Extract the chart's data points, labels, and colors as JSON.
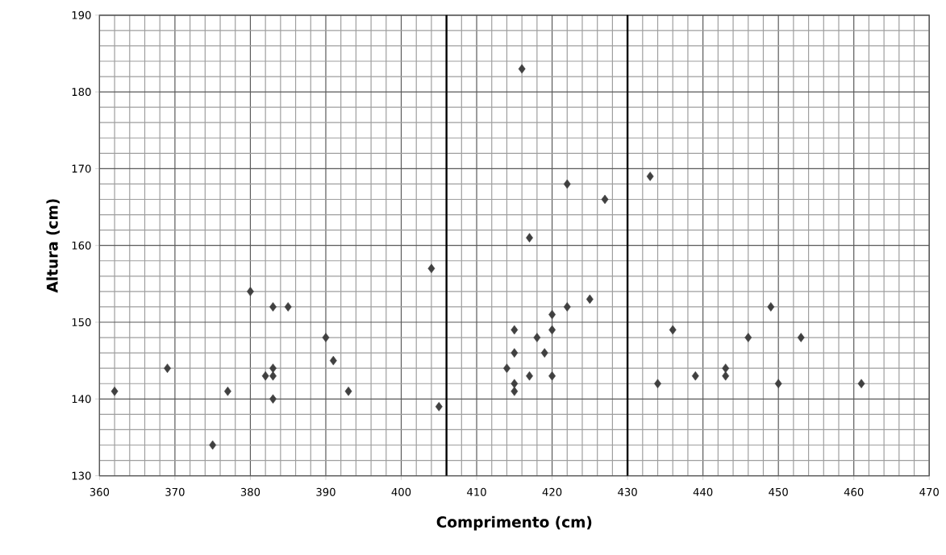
{
  "chart_data": {
    "type": "scatter",
    "xlabel": "Comprimento (cm)",
    "ylabel": "Altura (cm)",
    "xlim": [
      360,
      470
    ],
    "ylim": [
      130,
      190
    ],
    "xticks": [
      360,
      370,
      380,
      390,
      400,
      410,
      420,
      430,
      440,
      450,
      460,
      470
    ],
    "yticks": [
      130,
      140,
      150,
      160,
      170,
      180,
      190
    ],
    "grid": true,
    "marker": "diamond",
    "ref_lines": [
      {
        "axis": "x",
        "value": 406,
        "color": "#000000"
      },
      {
        "axis": "x",
        "value": 430,
        "color": "#000000"
      }
    ],
    "series": [
      {
        "color": "#404040",
        "x": [
          362,
          369,
          375,
          377,
          380,
          383,
          385,
          382,
          383,
          383,
          383,
          390,
          391,
          393,
          404,
          405,
          414,
          415,
          415,
          415,
          415,
          416,
          417,
          417,
          418,
          419,
          420,
          420,
          420,
          422,
          422,
          425,
          427,
          433,
          434,
          436,
          439,
          443,
          443,
          446,
          449,
          450,
          453,
          461
        ],
        "values": [
          141,
          144,
          134,
          141,
          154,
          152,
          152,
          143,
          144,
          143,
          140,
          148,
          145,
          141,
          157,
          139,
          144,
          149,
          146,
          142,
          141,
          183,
          161,
          143,
          148,
          146,
          149,
          151,
          143,
          152,
          168,
          153,
          166,
          169,
          142,
          149,
          143,
          144,
          143,
          148,
          152,
          142,
          148,
          142
        ]
      }
    ]
  }
}
